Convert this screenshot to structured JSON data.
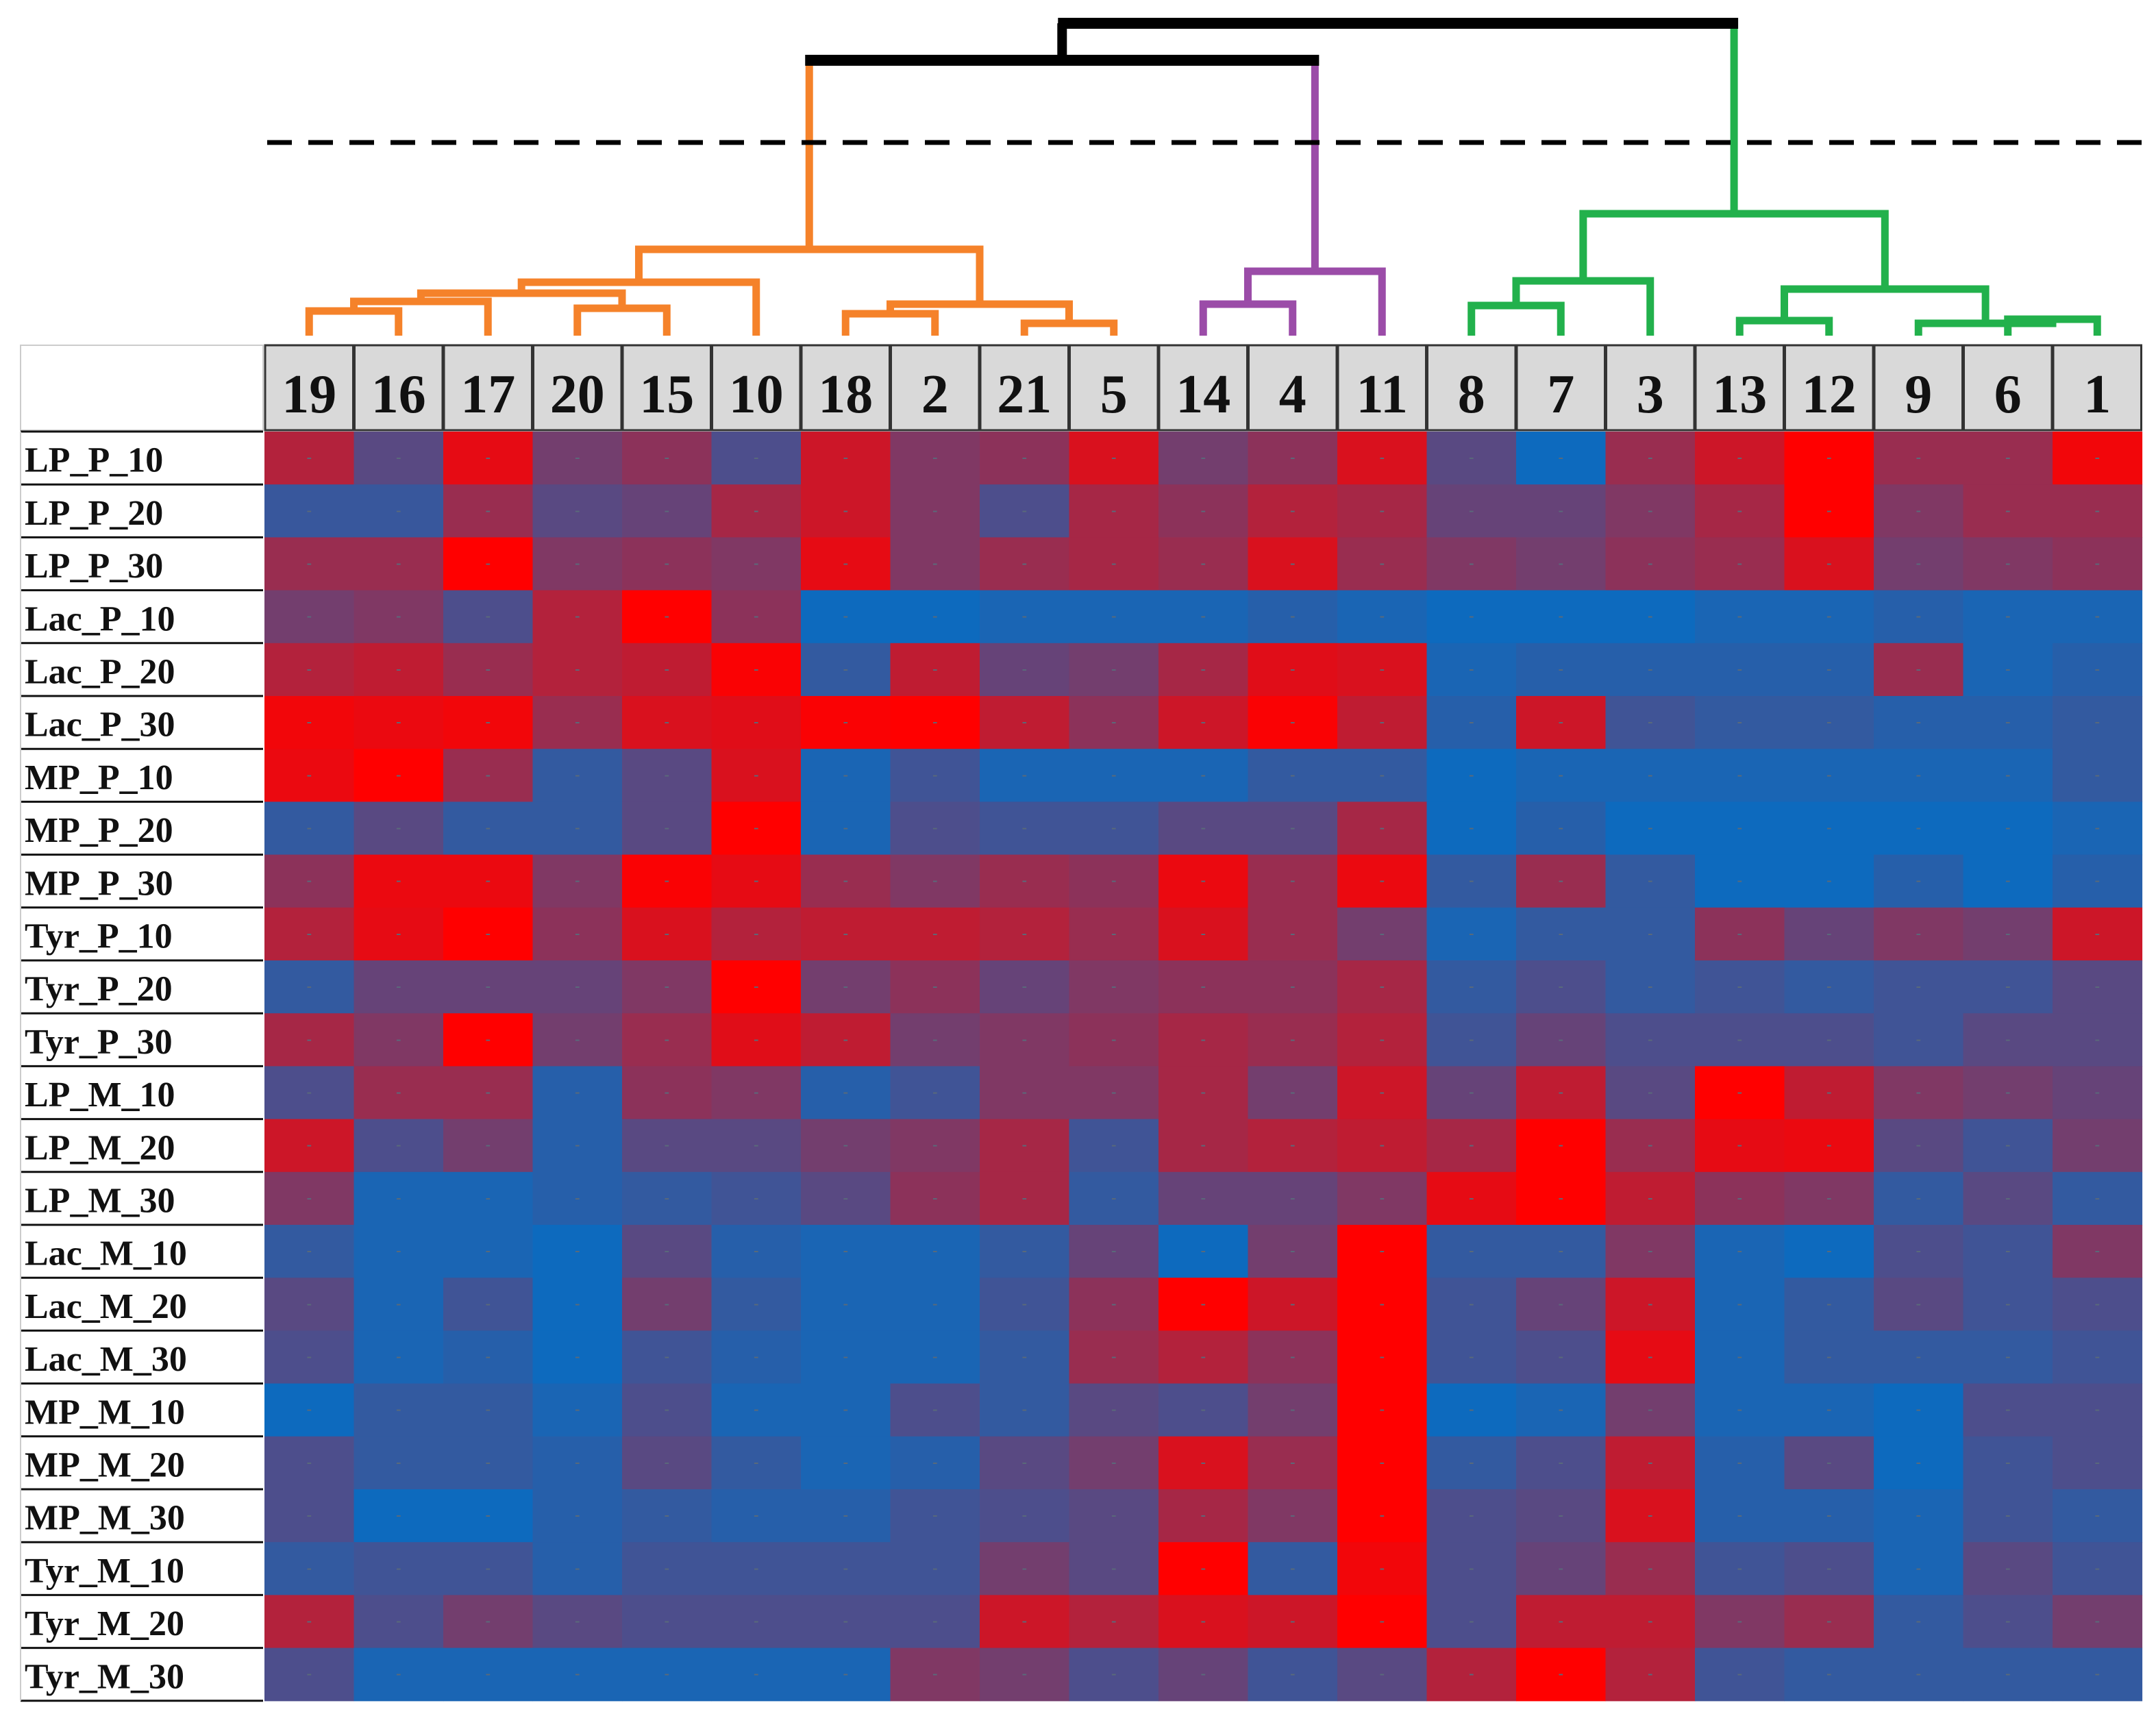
{
  "chart_data": {
    "type": "heatmap",
    "title": "",
    "xlabel": "",
    "ylabel": "",
    "columns": [
      "19",
      "16",
      "17",
      "20",
      "15",
      "10",
      "18",
      "2",
      "21",
      "5",
      "14",
      "4",
      "11",
      "8",
      "7",
      "3",
      "13",
      "12",
      "9",
      "6",
      "1"
    ],
    "rows": [
      "LP_P_10",
      "LP_P_20",
      "LP_P_30",
      "Lac_P_10",
      "Lac_P_20",
      "Lac_P_30",
      "MP_P_10",
      "MP_P_20",
      "MP_P_30",
      "Tyr_P_10",
      "Tyr_P_20",
      "Tyr_P_30",
      "LP_M_10",
      "LP_M_20",
      "LP_M_30",
      "Lac_M_10",
      "Lac_M_20",
      "Lac_M_30",
      "MP_M_10",
      "MP_M_20",
      "MP_M_30",
      "Tyr_M_10",
      "Tyr_M_20",
      "Tyr_M_30"
    ],
    "value_scale": "relative level from 0 (blue, low) to 1 (red, high)",
    "colors": {
      "low": "#0070c8",
      "high": "#ff0000",
      "cell_mark": "#5a6a7a"
    },
    "cell_mark": "-",
    "values": [
      [
        0.7,
        0.35,
        0.9,
        0.45,
        0.55,
        0.3,
        0.8,
        0.5,
        0.55,
        0.85,
        0.45,
        0.55,
        0.85,
        0.35,
        0.05,
        0.6,
        0.8,
        1.0,
        0.6,
        0.6,
        0.95
      ],
      [
        0.22,
        0.22,
        0.6,
        0.35,
        0.4,
        0.65,
        0.8,
        0.5,
        0.3,
        0.65,
        0.55,
        0.7,
        0.65,
        0.4,
        0.4,
        0.5,
        0.65,
        1.0,
        0.5,
        0.6,
        0.6
      ],
      [
        0.6,
        0.6,
        1.0,
        0.5,
        0.55,
        0.5,
        0.9,
        0.5,
        0.6,
        0.65,
        0.6,
        0.85,
        0.6,
        0.5,
        0.45,
        0.55,
        0.6,
        0.85,
        0.45,
        0.5,
        0.55
      ],
      [
        0.45,
        0.5,
        0.3,
        0.7,
        1.0,
        0.55,
        0.05,
        0.05,
        0.1,
        0.1,
        0.1,
        0.15,
        0.1,
        0.05,
        0.05,
        0.05,
        0.1,
        0.1,
        0.15,
        0.1,
        0.1
      ],
      [
        0.7,
        0.75,
        0.6,
        0.7,
        0.75,
        0.98,
        0.2,
        0.75,
        0.4,
        0.45,
        0.65,
        0.88,
        0.85,
        0.1,
        0.15,
        0.15,
        0.15,
        0.15,
        0.6,
        0.1,
        0.15
      ],
      [
        0.95,
        0.92,
        0.95,
        0.6,
        0.85,
        0.88,
        0.98,
        1.0,
        0.75,
        0.55,
        0.8,
        0.98,
        0.75,
        0.15,
        0.8,
        0.25,
        0.2,
        0.2,
        0.15,
        0.15,
        0.2
      ],
      [
        0.92,
        1.0,
        0.6,
        0.2,
        0.35,
        0.85,
        0.1,
        0.25,
        0.1,
        0.1,
        0.1,
        0.2,
        0.2,
        0.05,
        0.1,
        0.1,
        0.1,
        0.1,
        0.1,
        0.1,
        0.2
      ],
      [
        0.2,
        0.35,
        0.2,
        0.2,
        0.35,
        1.0,
        0.1,
        0.3,
        0.25,
        0.25,
        0.35,
        0.35,
        0.65,
        0.05,
        0.15,
        0.05,
        0.05,
        0.05,
        0.05,
        0.05,
        0.1
      ],
      [
        0.55,
        0.92,
        0.92,
        0.5,
        0.98,
        0.9,
        0.6,
        0.5,
        0.6,
        0.55,
        0.92,
        0.6,
        0.92,
        0.2,
        0.6,
        0.2,
        0.05,
        0.05,
        0.15,
        0.05,
        0.15
      ],
      [
        0.7,
        0.9,
        1.0,
        0.55,
        0.85,
        0.7,
        0.75,
        0.75,
        0.7,
        0.6,
        0.85,
        0.6,
        0.45,
        0.1,
        0.2,
        0.2,
        0.55,
        0.4,
        0.5,
        0.45,
        0.8
      ],
      [
        0.2,
        0.4,
        0.4,
        0.4,
        0.5,
        1.0,
        0.45,
        0.55,
        0.4,
        0.5,
        0.55,
        0.55,
        0.65,
        0.2,
        0.3,
        0.2,
        0.25,
        0.2,
        0.25,
        0.25,
        0.35
      ],
      [
        0.65,
        0.5,
        1.0,
        0.45,
        0.6,
        0.88,
        0.75,
        0.45,
        0.5,
        0.55,
        0.65,
        0.6,
        0.7,
        0.25,
        0.4,
        0.3,
        0.3,
        0.3,
        0.25,
        0.35,
        0.35
      ],
      [
        0.3,
        0.6,
        0.6,
        0.15,
        0.55,
        0.5,
        0.15,
        0.25,
        0.5,
        0.5,
        0.65,
        0.45,
        0.8,
        0.4,
        0.75,
        0.35,
        1.0,
        0.75,
        0.5,
        0.45,
        0.4
      ],
      [
        0.8,
        0.3,
        0.45,
        0.15,
        0.35,
        0.35,
        0.45,
        0.5,
        0.65,
        0.25,
        0.65,
        0.7,
        0.75,
        0.65,
        1.0,
        0.6,
        0.9,
        0.92,
        0.35,
        0.25,
        0.45
      ],
      [
        0.5,
        0.1,
        0.1,
        0.15,
        0.2,
        0.25,
        0.35,
        0.55,
        0.65,
        0.2,
        0.4,
        0.4,
        0.5,
        0.9,
        1.0,
        0.75,
        0.55,
        0.5,
        0.2,
        0.35,
        0.2
      ],
      [
        0.2,
        0.1,
        0.1,
        0.05,
        0.35,
        0.15,
        0.1,
        0.1,
        0.2,
        0.4,
        0.05,
        0.45,
        1.0,
        0.2,
        0.2,
        0.5,
        0.1,
        0.05,
        0.3,
        0.25,
        0.5
      ],
      [
        0.35,
        0.1,
        0.25,
        0.05,
        0.45,
        0.2,
        0.1,
        0.1,
        0.25,
        0.55,
        1.0,
        0.8,
        1.0,
        0.25,
        0.4,
        0.8,
        0.1,
        0.2,
        0.35,
        0.25,
        0.3
      ],
      [
        0.3,
        0.1,
        0.15,
        0.05,
        0.25,
        0.15,
        0.1,
        0.1,
        0.2,
        0.6,
        0.7,
        0.55,
        1.0,
        0.25,
        0.3,
        0.9,
        0.1,
        0.2,
        0.2,
        0.2,
        0.25
      ],
      [
        0.05,
        0.2,
        0.2,
        0.1,
        0.3,
        0.1,
        0.1,
        0.3,
        0.2,
        0.35,
        0.3,
        0.45,
        1.0,
        0.05,
        0.1,
        0.45,
        0.1,
        0.1,
        0.05,
        0.3,
        0.3
      ],
      [
        0.3,
        0.2,
        0.2,
        0.15,
        0.35,
        0.2,
        0.1,
        0.15,
        0.35,
        0.45,
        0.85,
        0.6,
        1.0,
        0.2,
        0.3,
        0.75,
        0.15,
        0.35,
        0.05,
        0.25,
        0.3
      ],
      [
        0.3,
        0.05,
        0.05,
        0.15,
        0.2,
        0.15,
        0.15,
        0.25,
        0.3,
        0.35,
        0.65,
        0.5,
        1.0,
        0.3,
        0.35,
        0.85,
        0.15,
        0.15,
        0.1,
        0.25,
        0.2
      ],
      [
        0.2,
        0.25,
        0.25,
        0.15,
        0.25,
        0.25,
        0.25,
        0.25,
        0.45,
        0.35,
        1.0,
        0.2,
        0.95,
        0.3,
        0.4,
        0.6,
        0.25,
        0.3,
        0.1,
        0.35,
        0.25
      ],
      [
        0.7,
        0.3,
        0.45,
        0.35,
        0.3,
        0.3,
        0.3,
        0.3,
        0.8,
        0.7,
        0.85,
        0.8,
        1.0,
        0.3,
        0.75,
        0.75,
        0.5,
        0.6,
        0.2,
        0.3,
        0.45
      ],
      [
        0.3,
        0.1,
        0.1,
        0.1,
        0.1,
        0.1,
        0.1,
        0.5,
        0.45,
        0.3,
        0.4,
        0.25,
        0.35,
        0.7,
        1.0,
        0.7,
        0.25,
        0.2,
        0.2,
        0.2,
        0.2
      ]
    ],
    "dendrogram": {
      "cut_line": "dashed",
      "clusters": [
        {
          "members": [
            "19",
            "16",
            "17",
            "20",
            "15",
            "10",
            "18",
            "2",
            "21",
            "5"
          ],
          "color": "#f5822a"
        },
        {
          "members": [
            "14",
            "4",
            "11"
          ],
          "color": "#9b4ca8"
        },
        {
          "members": [
            "8",
            "7",
            "3",
            "13",
            "12",
            "9",
            "6",
            "1"
          ],
          "color": "#22b14c"
        }
      ],
      "top_link_color": "#000000"
    }
  }
}
